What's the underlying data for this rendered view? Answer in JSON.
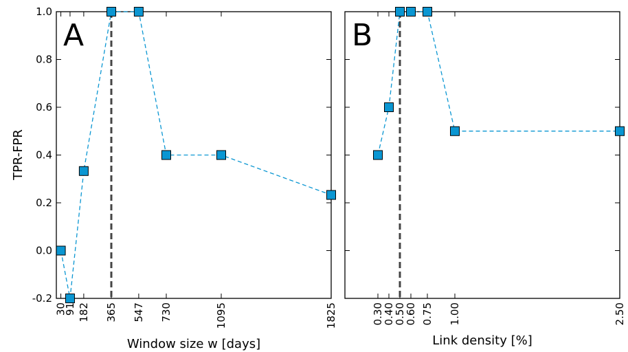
{
  "chart_data": [
    {
      "type": "line",
      "panel_label": "A",
      "xlabel": "Window size w [days]",
      "ylabel": "TPR-FPR",
      "xlim": [
        0,
        1825
      ],
      "ylim": [
        -0.2,
        1.0
      ],
      "x_ticks": [
        30,
        91,
        182,
        365,
        547,
        730,
        1095,
        1825
      ],
      "x_tick_labels": [
        "30",
        "91",
        "182",
        "365",
        "547",
        "730",
        "1095",
        "1825"
      ],
      "y_ticks": [
        -0.2,
        0.0,
        0.2,
        0.4,
        0.6,
        0.8,
        1.0
      ],
      "y_tick_labels": [
        "-0.2",
        "0.0",
        "0.2",
        "0.4",
        "0.6",
        "0.8",
        "1.0"
      ],
      "vline": 365,
      "series": [
        {
          "x": [
            30,
            91,
            182,
            365,
            547,
            730,
            1095,
            1825
          ],
          "y": [
            0.0,
            -0.2,
            0.333,
            1.0,
            1.0,
            0.4,
            0.4,
            0.233
          ]
        }
      ],
      "grid": false,
      "line_style": "dashed",
      "marker": "square",
      "color": "#0a96d2"
    },
    {
      "type": "line",
      "panel_label": "B",
      "xlabel": "Link density [%]",
      "ylabel": "",
      "xlim": [
        0.0,
        2.5
      ],
      "ylim": [
        -0.2,
        1.0
      ],
      "x_ticks": [
        0.3,
        0.4,
        0.5,
        0.6,
        0.75,
        1.0,
        2.5
      ],
      "x_tick_labels": [
        "0.30",
        "0.40",
        "0.50",
        "0.60",
        "0.75",
        "1.00",
        "2.50"
      ],
      "y_ticks": [
        -0.2,
        0.0,
        0.2,
        0.4,
        0.6,
        0.8,
        1.0
      ],
      "vline": 0.5,
      "series": [
        {
          "x": [
            0.3,
            0.4,
            0.5,
            0.6,
            0.75,
            1.0,
            2.5
          ],
          "y": [
            0.4,
            0.6,
            1.0,
            1.0,
            1.0,
            0.5,
            0.5
          ]
        }
      ],
      "grid": false,
      "line_style": "dashed",
      "marker": "square",
      "color": "#0a96d2"
    }
  ]
}
